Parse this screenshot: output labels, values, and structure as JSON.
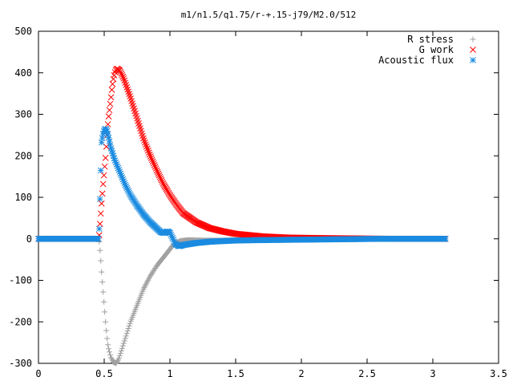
{
  "chart_data": {
    "type": "scatter",
    "title": "m1/n1.5/q1.75/r-+.15-j79/M2.0/512",
    "xlabel": "",
    "ylabel": "",
    "xlim": [
      0,
      3.5
    ],
    "ylim": [
      -300,
      500
    ],
    "xticks": [
      0,
      0.5,
      1,
      1.5,
      2,
      2.5,
      3,
      3.5
    ],
    "xtick_labels": [
      "0",
      "0.5",
      "1",
      "1.5",
      "2",
      "2.5",
      "3",
      "3.5"
    ],
    "yticks": [
      -300,
      -200,
      -100,
      0,
      100,
      200,
      300,
      400,
      500
    ],
    "ytick_labels": [
      "-300",
      "-200",
      "-100",
      "0",
      "100",
      "200",
      "300",
      "400",
      "500"
    ],
    "grid": false,
    "legend_position": "top-right",
    "x_extent": [
      0,
      3.1
    ],
    "series": [
      {
        "name": "R stress",
        "marker": "plus",
        "color": "#a0a0a0",
        "points": [
          [
            0.0,
            0
          ],
          [
            0.2,
            0
          ],
          [
            0.4,
            0
          ],
          [
            0.46,
            0
          ],
          [
            0.47,
            -35
          ],
          [
            0.48,
            -80
          ],
          [
            0.49,
            -120
          ],
          [
            0.5,
            -160
          ],
          [
            0.51,
            -200
          ],
          [
            0.52,
            -235
          ],
          [
            0.53,
            -260
          ],
          [
            0.55,
            -285
          ],
          [
            0.57,
            -297
          ],
          [
            0.59,
            -300
          ],
          [
            0.61,
            -290
          ],
          [
            0.63,
            -270
          ],
          [
            0.66,
            -240
          ],
          [
            0.7,
            -200
          ],
          [
            0.75,
            -160
          ],
          [
            0.8,
            -120
          ],
          [
            0.85,
            -90
          ],
          [
            0.9,
            -65
          ],
          [
            0.95,
            -45
          ],
          [
            1.0,
            -25
          ],
          [
            1.03,
            -12
          ],
          [
            1.08,
            -5
          ],
          [
            1.15,
            -3
          ],
          [
            1.25,
            -4
          ],
          [
            1.4,
            -4
          ],
          [
            1.6,
            -3
          ],
          [
            1.8,
            -2
          ],
          [
            2.0,
            -1
          ],
          [
            2.3,
            -1
          ],
          [
            2.6,
            0
          ],
          [
            3.1,
            0
          ]
        ]
      },
      {
        "name": "G work",
        "marker": "cross",
        "color": "#ff0000",
        "points": [
          [
            0.0,
            0
          ],
          [
            0.2,
            0
          ],
          [
            0.4,
            0
          ],
          [
            0.46,
            0
          ],
          [
            0.47,
            45
          ],
          [
            0.48,
            85
          ],
          [
            0.49,
            125
          ],
          [
            0.5,
            160
          ],
          [
            0.51,
            195
          ],
          [
            0.52,
            240
          ],
          [
            0.53,
            285
          ],
          [
            0.54,
            310
          ],
          [
            0.55,
            335
          ],
          [
            0.56,
            365
          ],
          [
            0.57,
            385
          ],
          [
            0.58,
            400
          ],
          [
            0.59,
            408
          ],
          [
            0.6,
            410
          ],
          [
            0.62,
            405
          ],
          [
            0.65,
            385
          ],
          [
            0.7,
            340
          ],
          [
            0.75,
            290
          ],
          [
            0.8,
            240
          ],
          [
            0.85,
            200
          ],
          [
            0.9,
            165
          ],
          [
            0.95,
            132
          ],
          [
            1.0,
            105
          ],
          [
            1.05,
            82
          ],
          [
            1.1,
            62
          ],
          [
            1.2,
            40
          ],
          [
            1.3,
            26
          ],
          [
            1.4,
            18
          ],
          [
            1.5,
            12
          ],
          [
            1.7,
            6
          ],
          [
            1.9,
            3
          ],
          [
            2.1,
            2
          ],
          [
            2.4,
            1
          ],
          [
            2.7,
            0
          ],
          [
            3.1,
            0
          ]
        ]
      },
      {
        "name": "Acoustic flux",
        "marker": "star",
        "color": "#1a8be0",
        "points": [
          [
            0.0,
            0
          ],
          [
            0.2,
            0
          ],
          [
            0.4,
            0
          ],
          [
            0.46,
            0
          ],
          [
            0.47,
            120
          ],
          [
            0.48,
            232
          ],
          [
            0.49,
            250
          ],
          [
            0.5,
            262
          ],
          [
            0.51,
            265
          ],
          [
            0.52,
            262
          ],
          [
            0.53,
            250
          ],
          [
            0.55,
            220
          ],
          [
            0.58,
            190
          ],
          [
            0.62,
            160
          ],
          [
            0.66,
            130
          ],
          [
            0.7,
            105
          ],
          [
            0.75,
            80
          ],
          [
            0.8,
            58
          ],
          [
            0.85,
            40
          ],
          [
            0.9,
            25
          ],
          [
            0.93,
            16
          ],
          [
            0.96,
            14
          ],
          [
            0.98,
            18
          ],
          [
            1.0,
            15
          ],
          [
            1.02,
            2
          ],
          [
            1.04,
            -12
          ],
          [
            1.07,
            -18
          ],
          [
            1.1,
            -15
          ],
          [
            1.2,
            -10
          ],
          [
            1.3,
            -7
          ],
          [
            1.5,
            -4
          ],
          [
            1.7,
            -3
          ],
          [
            2.0,
            -2
          ],
          [
            2.3,
            -1
          ],
          [
            2.6,
            0
          ],
          [
            3.1,
            0
          ]
        ]
      }
    ]
  }
}
